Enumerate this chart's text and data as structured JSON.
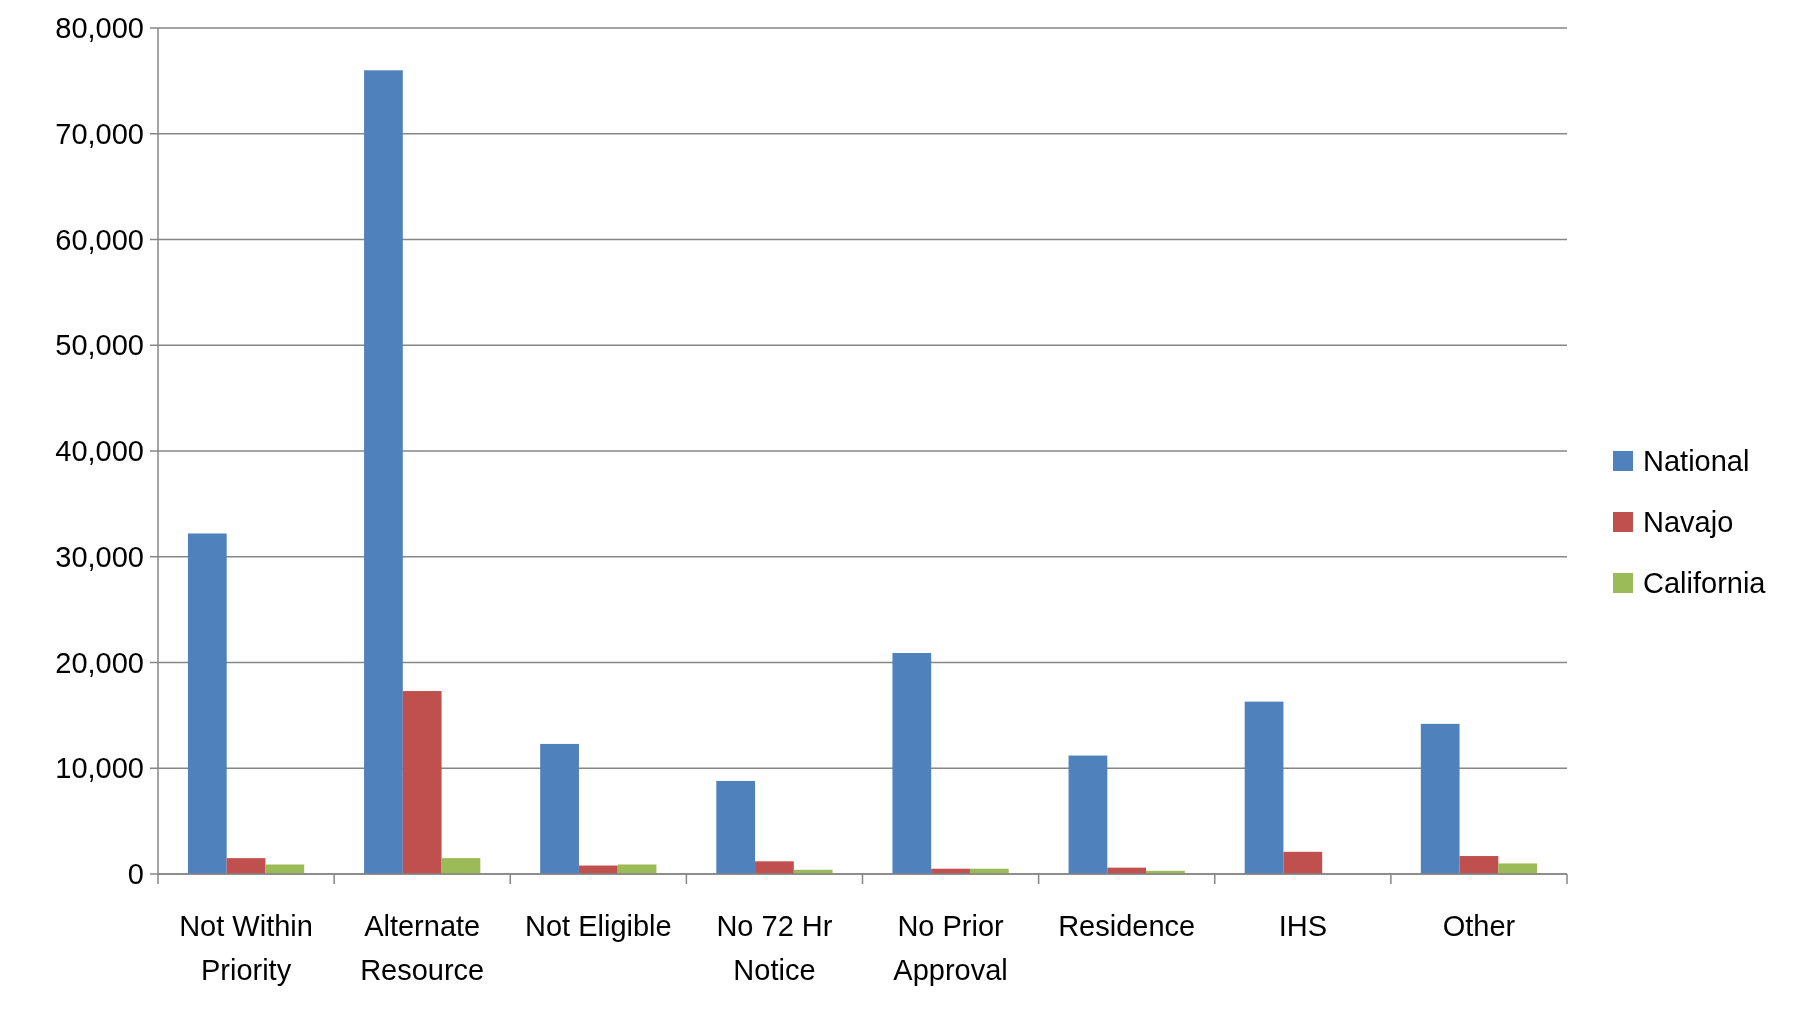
{
  "chart_data": {
    "type": "bar",
    "categories": [
      "Not Within Priority",
      "Alternate Resource",
      "Not Eligible",
      "No 72 Hr Notice",
      "No Prior Approval",
      "Residence",
      "IHS",
      "Other"
    ],
    "series": [
      {
        "name": "National",
        "color": "#4f81bd",
        "values": [
          32200,
          76000,
          12300,
          8800,
          20900,
          11200,
          16300,
          14200
        ]
      },
      {
        "name": "Navajo",
        "color": "#c0504d",
        "values": [
          1500,
          17300,
          800,
          1200,
          500,
          600,
          2100,
          1700
        ]
      },
      {
        "name": "California",
        "color": "#9bbb59",
        "values": [
          900,
          1500,
          900,
          400,
          500,
          300,
          0,
          1000
        ]
      }
    ],
    "ylim": [
      0,
      80000
    ],
    "yticks": [
      {
        "value": 0,
        "label": "0"
      },
      {
        "value": 10000,
        "label": "10,000"
      },
      {
        "value": 20000,
        "label": "20,000"
      },
      {
        "value": 30000,
        "label": "30,000"
      },
      {
        "value": 40000,
        "label": "40,000"
      },
      {
        "value": 50000,
        "label": "50,000"
      },
      {
        "value": 60000,
        "label": "60,000"
      },
      {
        "value": 70000,
        "label": "70,000"
      },
      {
        "value": 80000,
        "label": "80,000"
      }
    ],
    "grid": "y",
    "legend": "right"
  }
}
